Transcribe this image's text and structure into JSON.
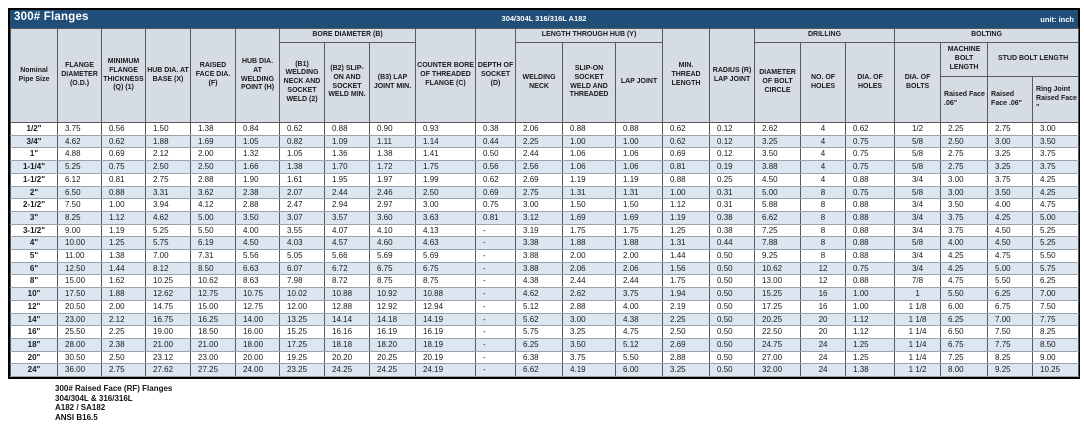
{
  "title_bar": {
    "title": "300# Flanges",
    "material": "304/304L 316/316L A182",
    "unit": "unit: inch"
  },
  "header": {
    "groups": {
      "bore": "BORE DIAMETER (B)",
      "hub": "LENGTH THROUGH HUB (Y)",
      "drilling": "DRILLING",
      "bolting": "BOLTING",
      "machine_bolt": "MACHINE BOLT LENGTH",
      "stud_bolt": "STUD BOLT LENGTH"
    },
    "columns": {
      "nominal": "Nominal Pipe Size",
      "od": "FLANGE DIAMETER (O.D.)",
      "thickness": "MINIMUM FLANGE THICKNESS (Q) (1)",
      "hub_base": "HUB DIA. AT BASE (X)",
      "raised_face": "RAISED FACE DIA. (F)",
      "hub_weld": "HUB DIA. AT WELDING POINT (H)",
      "b1": "(B1) WELDING NECK AND SOCKET WELD (2)",
      "b2": "(B2) SLIP-ON AND SOCKET WELD MIN.",
      "b3": "(B3) LAP JOINT MIN.",
      "counter_bore": "COUNTER BORE OF THREADED FLANGE (C)",
      "socket_depth": "DEPTH OF SOCKET (D)",
      "welding_neck": "WELDING NECK",
      "slip_on": "SLIP-ON SOCKET WELD AND THREADED",
      "lap_joint": "LAP JOINT",
      "min_thread": "MIN. THREAD LENGTH",
      "radius": "RADIUS (R) LAP JOINT",
      "bolt_circle": "DIAMETER OF BOLT CIRCLE",
      "num_holes": "NO. OF HOLES",
      "dia_holes": "DIA. OF HOLES",
      "dia_bolts": "DIA. OF BOLTS",
      "mbl_raised": "Raised Face .06\"",
      "sbl_raised": "Raised Face .06\"",
      "sbl_ring": "Ring Joint Raised Face \""
    }
  },
  "rows": [
    [
      "1/2\"",
      "3.75",
      "0.56",
      "1.50",
      "1.38",
      "0.84",
      "0.62",
      "0.88",
      "0.90",
      "0.93",
      "0.38",
      "2.06",
      "0.88",
      "0.88",
      "0.62",
      "0.12",
      "2.62",
      "4",
      "0.62",
      "1/2",
      "2.25",
      "2.75",
      "3.00"
    ],
    [
      "3/4\"",
      "4.62",
      "0.62",
      "1.88",
      "1.69",
      "1.05",
      "0.82",
      "1.09",
      "1.11",
      "1.14",
      "0.44",
      "2.25",
      "1.00",
      "1.00",
      "0.62",
      "0.12",
      "3.25",
      "4",
      "0.75",
      "5/8",
      "2.50",
      "3.00",
      "3.50"
    ],
    [
      "1\"",
      "4.88",
      "0.69",
      "2.12",
      "2.00",
      "1.32",
      "1.05",
      "1.36",
      "1.38",
      "1.41",
      "0.50",
      "2.44",
      "1.06",
      "1.06",
      "0.69",
      "0.12",
      "3.50",
      "4",
      "0.75",
      "5/8",
      "2.75",
      "3.25",
      "3.75"
    ],
    [
      "1-1/4\"",
      "5.25",
      "0.75",
      "2.50",
      "2.50",
      "1.66",
      "1.38",
      "1.70",
      "1.72",
      "1.75",
      "0.56",
      "2.56",
      "1.06",
      "1.06",
      "0.81",
      "0.19",
      "3.88",
      "4",
      "0.75",
      "5/8",
      "2.75",
      "3.25",
      "3.75"
    ],
    [
      "1-1/2\"",
      "6.12",
      "0.81",
      "2.75",
      "2.88",
      "1.90",
      "1.61",
      "1.95",
      "1.97",
      "1.99",
      "0.62",
      "2.69",
      "1.19",
      "1.19",
      "0.88",
      "0.25",
      "4.50",
      "4",
      "0.88",
      "3/4",
      "3.00",
      "3.75",
      "4.25"
    ],
    [
      "2\"",
      "6.50",
      "0.88",
      "3.31",
      "3.62",
      "2.38",
      "2.07",
      "2.44",
      "2.46",
      "2.50",
      "0.69",
      "2.75",
      "1.31",
      "1.31",
      "1.00",
      "0.31",
      "5.00",
      "8",
      "0.75",
      "5/8",
      "3.00",
      "3.50",
      "4.25"
    ],
    [
      "2-1/2\"",
      "7.50",
      "1.00",
      "3.94",
      "4.12",
      "2.88",
      "2.47",
      "2.94",
      "2.97",
      "3.00",
      "0.75",
      "3.00",
      "1.50",
      "1.50",
      "1.12",
      "0.31",
      "5.88",
      "8",
      "0.88",
      "3/4",
      "3.50",
      "4.00",
      "4.75"
    ],
    [
      "3\"",
      "8.25",
      "1.12",
      "4.62",
      "5.00",
      "3.50",
      "3.07",
      "3.57",
      "3.60",
      "3.63",
      "0.81",
      "3.12",
      "1.69",
      "1.69",
      "1.19",
      "0.38",
      "6.62",
      "8",
      "0.88",
      "3/4",
      "3.75",
      "4.25",
      "5.00"
    ],
    [
      "3-1/2\"",
      "9.00",
      "1.19",
      "5.25",
      "5.50",
      "4.00",
      "3.55",
      "4.07",
      "4.10",
      "4.13",
      "-",
      "3.19",
      "1.75",
      "1.75",
      "1.25",
      "0.38",
      "7.25",
      "8",
      "0.88",
      "3/4",
      "3.75",
      "4.50",
      "5.25"
    ],
    [
      "4\"",
      "10.00",
      "1.25",
      "5.75",
      "6.19",
      "4.50",
      "4.03",
      "4.57",
      "4.60",
      "4.63",
      "-",
      "3.38",
      "1.88",
      "1.88",
      "1.31",
      "0.44",
      "7.88",
      "8",
      "0.88",
      "5/8",
      "4.00",
      "4.50",
      "5.25"
    ],
    [
      "5\"",
      "11.00",
      "1.38",
      "7.00",
      "7.31",
      "5.56",
      "5.05",
      "5.66",
      "5.69",
      "5.69",
      "-",
      "3.88",
      "2.00",
      "2.00",
      "1.44",
      "0.50",
      "9.25",
      "8",
      "0.88",
      "3/4",
      "4.25",
      "4.75",
      "5.50"
    ],
    [
      "6\"",
      "12.50",
      "1.44",
      "8.12",
      "8.50",
      "6.63",
      "6.07",
      "6.72",
      "6.75",
      "6.75",
      "-",
      "3.88",
      "2.06",
      "2.06",
      "1.56",
      "0.50",
      "10.62",
      "12",
      "0.75",
      "3/4",
      "4.25",
      "5.00",
      "5.75"
    ],
    [
      "8\"",
      "15.00",
      "1.62",
      "10.25",
      "10.62",
      "8.63",
      "7.98",
      "8.72",
      "8.75",
      "8.75",
      "-",
      "4.38",
      "2.44",
      "2.44",
      "1.75",
      "0.50",
      "13.00",
      "12",
      "0.88",
      "7/8",
      "4.75",
      "5.50",
      "6.25"
    ],
    [
      "10\"",
      "17.50",
      "1.88",
      "12.62",
      "12.75",
      "10.75",
      "10.02",
      "10.88",
      "10.92",
      "10.88",
      "-",
      "4.62",
      "2.62",
      "3.75",
      "1.94",
      "0.50",
      "15.25",
      "16",
      "1.00",
      "1",
      "5.50",
      "6.25",
      "7.00"
    ],
    [
      "12\"",
      "20.50",
      "2.00",
      "14.75",
      "15.00",
      "12.75",
      "12.00",
      "12.88",
      "12.92",
      "12.94",
      "-",
      "5.12",
      "2.88",
      "4.00",
      "2.19",
      "0.50",
      "17.25",
      "16",
      "1.00",
      "1 1/8",
      "6.00",
      "6.75",
      "7.50"
    ],
    [
      "14\"",
      "23.00",
      "2.12",
      "16.75",
      "16.25",
      "14.00",
      "13.25",
      "14.14",
      "14.18",
      "14.19",
      "-",
      "5.62",
      "3.00",
      "4.38",
      "2.25",
      "0.50",
      "20.25",
      "20",
      "1.12",
      "1 1/8",
      "6.25",
      "7.00",
      "7.75"
    ],
    [
      "16\"",
      "25.50",
      "2.25",
      "19.00",
      "18.50",
      "16.00",
      "15.25",
      "16.16",
      "16.19",
      "16.19",
      "-",
      "5.75",
      "3.25",
      "4.75",
      "2.50",
      "0.50",
      "22.50",
      "20",
      "1.12",
      "1 1/4",
      "6.50",
      "7.50",
      "8.25"
    ],
    [
      "18\"",
      "28.00",
      "2.38",
      "21.00",
      "21.00",
      "18.00",
      "17.25",
      "18.18",
      "18.20",
      "18.19",
      "-",
      "6.25",
      "3.50",
      "5.12",
      "2.69",
      "0.50",
      "24.75",
      "24",
      "1.25",
      "1 1/4",
      "6.75",
      "7.75",
      "8.50"
    ],
    [
      "20\"",
      "30.50",
      "2.50",
      "23.12",
      "23.00",
      "20.00",
      "19.25",
      "20.20",
      "20.25",
      "20.19",
      "-",
      "6.38",
      "3.75",
      "5.50",
      "2.88",
      "0.50",
      "27.00",
      "24",
      "1.25",
      "1 1/4",
      "7.25",
      "8.25",
      "9.00"
    ],
    [
      "24\"",
      "36.00",
      "2.75",
      "27.62",
      "27.25",
      "24.00",
      "23.25",
      "24.25",
      "24.25",
      "24.19",
      "-",
      "6.62",
      "4.19",
      "6.00",
      "3.25",
      "0.50",
      "32.00",
      "24",
      "1.38",
      "1 1/2",
      "8.00",
      "9.25",
      "10.25"
    ]
  ],
  "notes": [
    "300# Raised Face (RF) Flanges",
    "304/304L & 316/316L",
    "A182 / SA182",
    "ANSI B16.5"
  ],
  "colors": {
    "title_bar_bg": "#1F4E79",
    "title_bar_text": "#FFFFFF",
    "header_bg": "#D6DCE4",
    "alt_row_bg": "#DCE6F1",
    "grid_dark": "#595959",
    "grid_light": "#9AA3AD",
    "outer_border": "#000000"
  }
}
